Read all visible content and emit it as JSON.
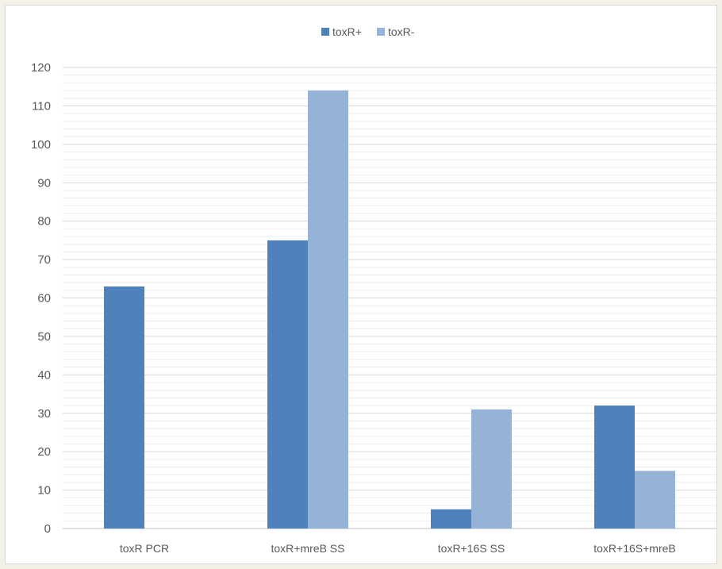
{
  "chart_data": {
    "type": "bar",
    "categories": [
      "toxR PCR",
      "toxR+mreB SS",
      "toxR+16S SS",
      "toxR+16S+mreB"
    ],
    "series": [
      {
        "name": "toxR+",
        "color": "#4f81bd",
        "values": [
          63,
          75,
          5,
          32
        ]
      },
      {
        "name": "toxR-",
        "color": "#95b3d7",
        "values": [
          0,
          114,
          31,
          15
        ]
      }
    ],
    "ylim": [
      0,
      120
    ],
    "yticks": [
      0,
      10,
      20,
      30,
      40,
      50,
      60,
      70,
      80,
      90,
      100,
      110,
      120
    ],
    "minor_grid_step": 2,
    "grid": true,
    "legend_position": "top-center",
    "title": "",
    "xlabel": "",
    "ylabel": ""
  }
}
